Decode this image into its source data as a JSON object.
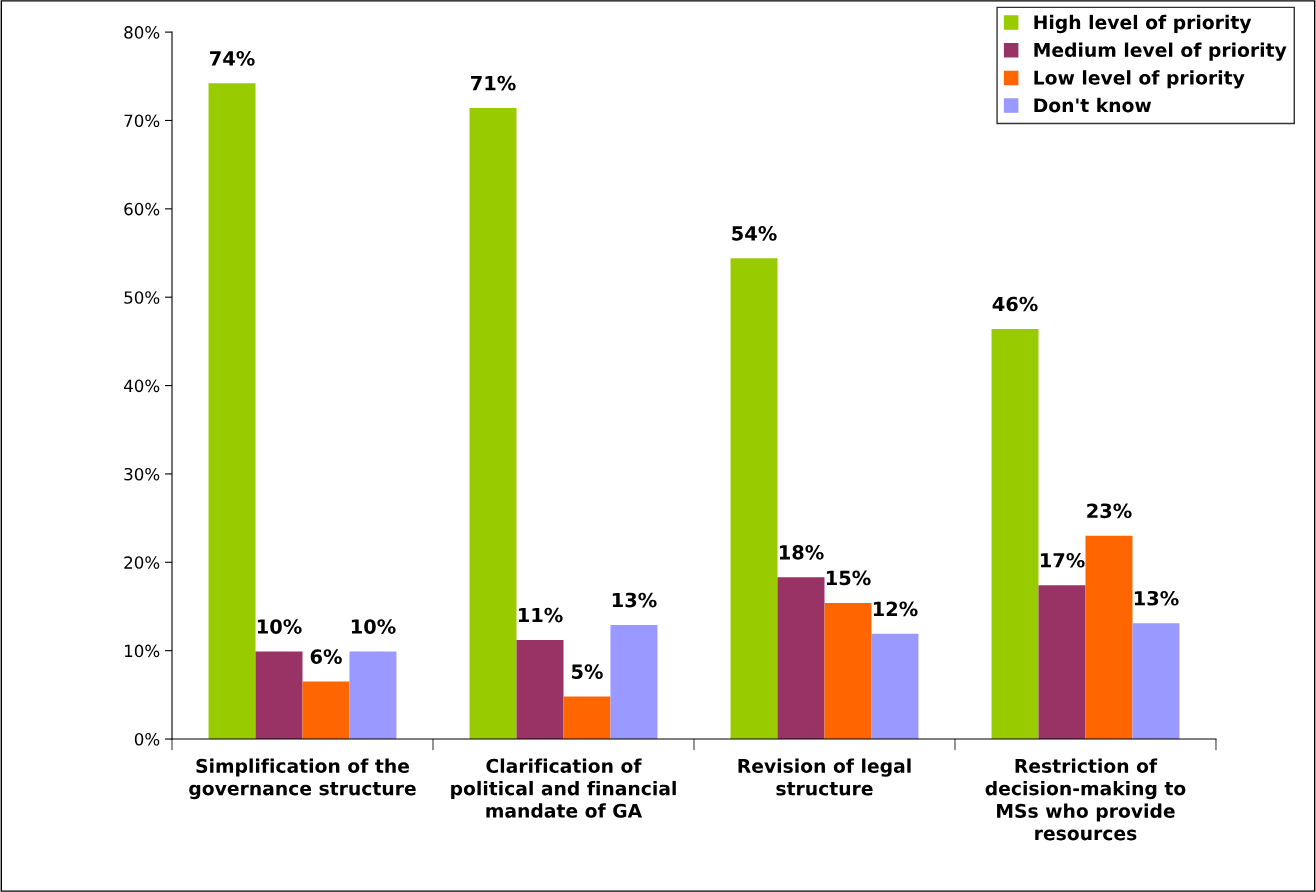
{
  "chart_data": {
    "type": "bar",
    "categories": [
      "Simplification of the\ngovernance structure",
      "Clarification of\npolitical and financial\nmandate of GA",
      "Revision of legal\nstructure",
      "Restriction of\ndecision-making to\nMSs who provide\nresources"
    ],
    "series": [
      {
        "name": "High level of priority",
        "color": "#99cc00",
        "values": [
          74.2,
          71.4,
          54.4,
          46.4
        ],
        "value_labels": [
          "74%",
          "71%",
          "54%",
          "46%"
        ]
      },
      {
        "name": "Medium level of priority",
        "color": "#993366",
        "values": [
          9.9,
          11.2,
          18.3,
          17.4
        ],
        "value_labels": [
          "10%",
          "11%",
          "18%",
          "17%"
        ]
      },
      {
        "name": "Low level of priority",
        "color": "#ff6600",
        "values": [
          6.5,
          4.8,
          15.4,
          23
        ],
        "value_labels": [
          "6%",
          "5%",
          "15%",
          "23%"
        ]
      },
      {
        "name": "Don't know",
        "color": "#9999ff",
        "values": [
          9.9,
          12.9,
          11.9,
          13.1
        ],
        "value_labels": [
          "10%",
          "13%",
          "12%",
          "13%"
        ]
      }
    ],
    "ylim": [
      0,
      80
    ],
    "yticks": [
      {
        "value": 0,
        "label": "0%"
      },
      {
        "value": 10,
        "label": "10%"
      },
      {
        "value": 20,
        "label": "20%"
      },
      {
        "value": 30,
        "label": "30%"
      },
      {
        "value": 40,
        "label": "40%"
      },
      {
        "value": 50,
        "label": "50%"
      },
      {
        "value": 60,
        "label": "60%"
      },
      {
        "value": 70,
        "label": "70%"
      },
      {
        "value": 80,
        "label": "80%"
      }
    ],
    "legend": "top right",
    "grid": false
  }
}
